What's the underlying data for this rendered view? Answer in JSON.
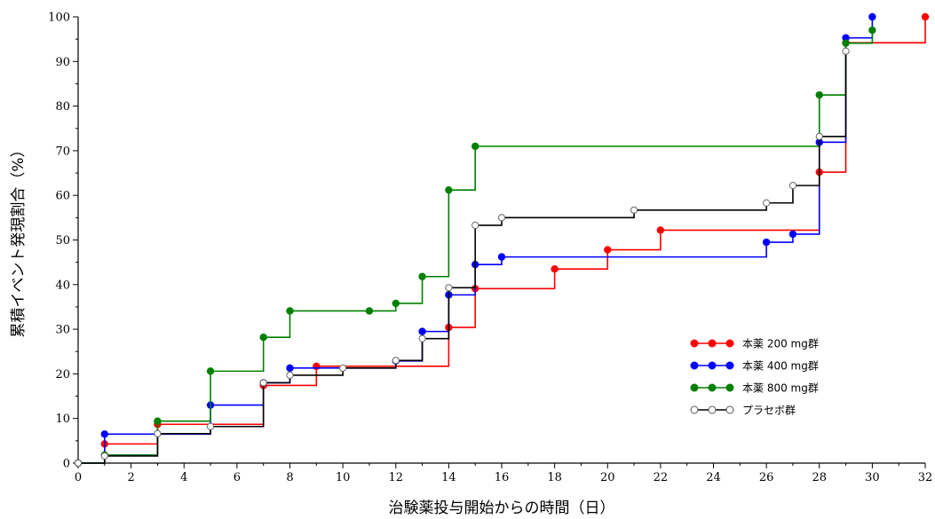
{
  "chart_data": {
    "type": "line",
    "subtype": "step",
    "title": "",
    "xlabel": "治験薬投与開始からの時間（日）",
    "ylabel": "累積イベント発現割合（%）",
    "xlim": [
      0,
      32
    ],
    "ylim": [
      0,
      100
    ],
    "xticks": [
      "0",
      "2",
      "4",
      "6",
      "8",
      "10",
      "12",
      "14",
      "16",
      "18",
      "20",
      "22",
      "24",
      "26",
      "28",
      "30",
      "32"
    ],
    "yticks": [
      "0",
      "10",
      "20",
      "30",
      "40",
      "50",
      "60",
      "70",
      "80",
      "90",
      "100"
    ],
    "grid": false,
    "legend_position": "lower-right",
    "series": [
      {
        "name": "本薬 200 mg群",
        "color": "#ff0000",
        "marker": "filled-circle",
        "points": [
          [
            0,
            0
          ],
          [
            1,
            4.3
          ],
          [
            3,
            8.7
          ],
          [
            7,
            17.4
          ],
          [
            9,
            21.7
          ],
          [
            14,
            30.4
          ],
          [
            15,
            39.1
          ],
          [
            18,
            43.5
          ],
          [
            20,
            47.8
          ],
          [
            22,
            52.2
          ],
          [
            28,
            65.2
          ],
          [
            29,
            94.2
          ],
          [
            32,
            100
          ]
        ]
      },
      {
        "name": "本薬 400 mg群",
        "color": "#0000ff",
        "marker": "filled-circle",
        "points": [
          [
            0,
            0
          ],
          [
            1,
            6.5
          ],
          [
            5,
            13.0
          ],
          [
            7,
            18.0
          ],
          [
            8,
            21.3
          ],
          [
            12,
            22.9
          ],
          [
            13,
            29.5
          ],
          [
            14,
            37.7
          ],
          [
            15,
            44.5
          ],
          [
            16,
            46.2
          ],
          [
            26,
            49.5
          ],
          [
            27,
            51.3
          ],
          [
            28,
            71.9
          ],
          [
            29,
            95.3
          ],
          [
            30,
            100
          ]
        ]
      },
      {
        "name": "本薬 800 mg群",
        "color": "#008000",
        "marker": "filled-circle",
        "points": [
          [
            0,
            0
          ],
          [
            1,
            1.8
          ],
          [
            3,
            9.4
          ],
          [
            5,
            20.6
          ],
          [
            7,
            28.2
          ],
          [
            8,
            34.1
          ],
          [
            11,
            34.1
          ],
          [
            12,
            35.8
          ],
          [
            13,
            41.8
          ],
          [
            14,
            61.2
          ],
          [
            15,
            71.0
          ],
          [
            28,
            82.5
          ],
          [
            29,
            94.1
          ],
          [
            30,
            97.0
          ]
        ]
      },
      {
        "name": "プラセボ群",
        "color": "#000000",
        "marker": "open-circle",
        "points": [
          [
            0,
            0
          ],
          [
            1,
            1.6
          ],
          [
            3,
            6.6
          ],
          [
            5,
            8.2
          ],
          [
            7,
            18.0
          ],
          [
            8,
            19.7
          ],
          [
            10,
            21.3
          ],
          [
            12,
            23.0
          ],
          [
            13,
            27.9
          ],
          [
            14,
            39.3
          ],
          [
            15,
            53.3
          ],
          [
            16,
            55.0
          ],
          [
            21,
            56.7
          ],
          [
            26,
            58.3
          ],
          [
            27,
            62.2
          ],
          [
            28,
            73.2
          ],
          [
            29,
            92.3
          ]
        ]
      }
    ]
  }
}
